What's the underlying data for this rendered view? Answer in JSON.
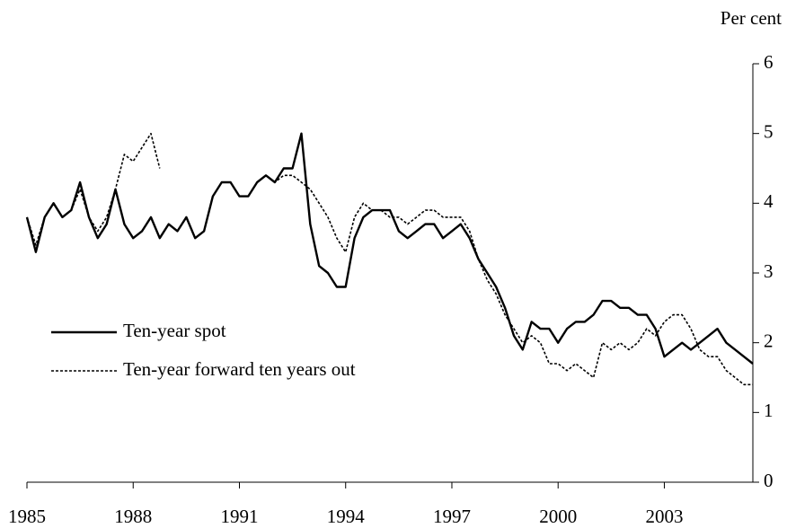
{
  "chart_data": {
    "type": "line",
    "y_label": "Per cent",
    "x": [
      1985,
      1985.25,
      1985.5,
      1985.75,
      1986,
      1986.25,
      1986.5,
      1986.75,
      1987,
      1987.25,
      1987.5,
      1987.75,
      1988,
      1988.25,
      1988.5,
      1988.75,
      1989,
      1989.25,
      1989.5,
      1989.75,
      1990,
      1990.25,
      1990.5,
      1990.75,
      1991,
      1991.25,
      1991.5,
      1991.75,
      1992,
      1992.25,
      1992.5,
      1992.75,
      1993,
      1993.25,
      1993.5,
      1993.75,
      1994,
      1994.25,
      1994.5,
      1994.75,
      1995,
      1995.25,
      1995.5,
      1995.75,
      1996,
      1996.25,
      1996.5,
      1996.75,
      1997,
      1997.25,
      1997.5,
      1997.75,
      1998,
      1998.25,
      1998.5,
      1998.75,
      1999,
      1999.25,
      1999.5,
      1999.75,
      2000,
      2000.25,
      2000.5,
      2000.75,
      2001,
      2001.25,
      2001.5,
      2001.75,
      2002,
      2002.25,
      2002.5,
      2002.75,
      2003,
      2003.25,
      2003.5,
      2003.75,
      2004,
      2004.25,
      2004.5,
      2004.75,
      2005,
      2005.25,
      2005.5
    ],
    "series": [
      {
        "name": "Ten-year spot",
        "color": "#000000",
        "dash": false,
        "values": [
          3.8,
          3.3,
          3.8,
          4.0,
          3.8,
          3.9,
          4.3,
          3.8,
          3.5,
          3.7,
          4.2,
          3.7,
          3.5,
          3.6,
          3.8,
          3.5,
          3.7,
          3.6,
          3.8,
          3.5,
          3.6,
          4.1,
          4.3,
          4.3,
          4.1,
          4.1,
          4.3,
          4.4,
          4.3,
          4.5,
          4.5,
          5.0,
          3.7,
          3.1,
          3.0,
          2.8,
          2.8,
          3.5,
          3.8,
          3.9,
          3.9,
          3.9,
          3.6,
          3.5,
          3.6,
          3.7,
          3.7,
          3.5,
          3.6,
          3.7,
          3.5,
          3.2,
          3.0,
          2.8,
          2.5,
          2.1,
          1.9,
          2.3,
          2.2,
          2.2,
          2.0,
          2.2,
          2.3,
          2.3,
          2.4,
          2.6,
          2.6,
          2.5,
          2.5,
          2.4,
          2.4,
          2.2,
          1.8,
          1.9,
          2.0,
          1.9,
          2.0,
          2.1,
          2.2,
          2.0,
          1.9,
          1.8,
          1.7
        ]
      },
      {
        "name": "Ten-year forward ten years out",
        "color": "#000000",
        "dash": true,
        "values": [
          3.8,
          3.4,
          3.8,
          4.0,
          3.8,
          3.9,
          4.2,
          3.8,
          3.6,
          3.8,
          4.2,
          4.7,
          4.6,
          4.8,
          5.0,
          4.5,
          null,
          3.6,
          3.8,
          3.5,
          3.6,
          4.1,
          4.3,
          4.3,
          4.1,
          4.1,
          4.3,
          4.4,
          4.3,
          4.4,
          4.4,
          4.3,
          4.2,
          4.0,
          3.8,
          3.5,
          3.3,
          3.8,
          4.0,
          3.9,
          3.9,
          3.8,
          3.8,
          3.7,
          3.8,
          3.9,
          3.9,
          3.8,
          3.8,
          3.8,
          3.6,
          3.2,
          2.9,
          2.7,
          2.4,
          2.2,
          2.0,
          2.1,
          2.0,
          1.7,
          1.7,
          1.6,
          1.7,
          1.6,
          1.5,
          2.0,
          1.9,
          2.0,
          1.9,
          2.0,
          2.2,
          2.1,
          2.3,
          2.4,
          2.4,
          2.2,
          1.9,
          1.8,
          1.8,
          1.6,
          1.5,
          1.4,
          1.4
        ]
      }
    ],
    "xlim": [
      1985,
      2005.5
    ],
    "xticks": [
      1985,
      1988,
      1991,
      1994,
      1997,
      2000,
      2003
    ],
    "ylim": [
      0,
      6
    ],
    "yticks": [
      0,
      1,
      2,
      3,
      4,
      5,
      6
    ],
    "y_axis_side": "right",
    "legend": "left"
  }
}
